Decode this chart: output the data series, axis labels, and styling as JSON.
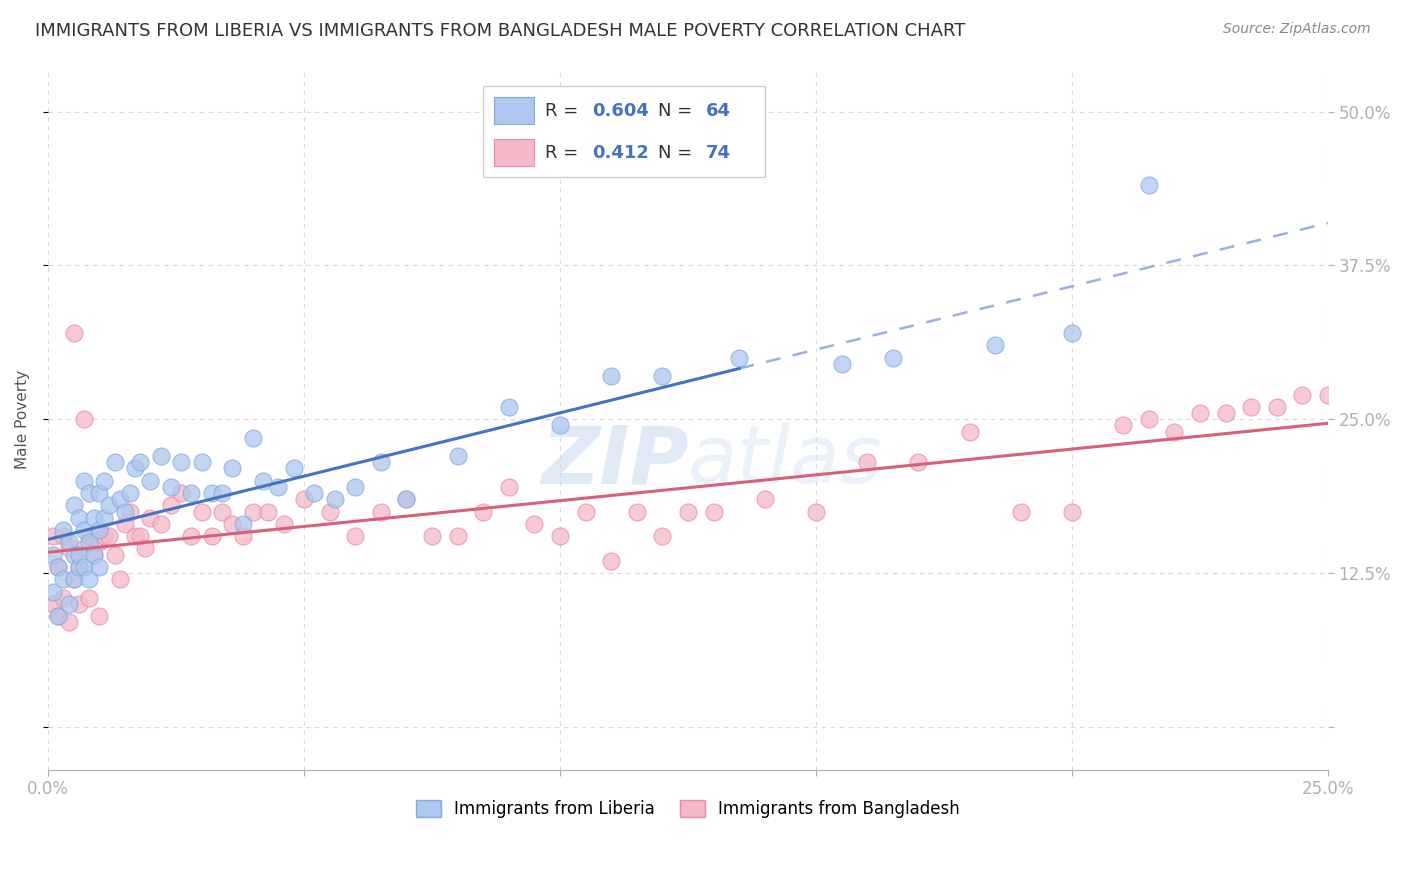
{
  "title": "IMMIGRANTS FROM LIBERIA VS IMMIGRANTS FROM BANGLADESH MALE POVERTY CORRELATION CHART",
  "source": "Source: ZipAtlas.com",
  "ylabel": "Male Poverty",
  "x_min": 0.0,
  "x_max": 0.25,
  "y_min": -0.035,
  "y_max": 0.535,
  "x_tick_positions": [
    0.0,
    0.05,
    0.1,
    0.15,
    0.2,
    0.25
  ],
  "x_tick_labels": [
    "0.0%",
    "",
    "",
    "",
    "",
    "25.0%"
  ],
  "y_tick_positions": [
    0.0,
    0.125,
    0.25,
    0.375,
    0.5
  ],
  "y_tick_labels": [
    "",
    "12.5%",
    "25.0%",
    "37.5%",
    "50.0%"
  ],
  "liberia_color": "#aec6f0",
  "liberia_edge_color": "#80aad8",
  "bangladesh_color": "#f5b8c8",
  "bangladesh_edge_color": "#e888aa",
  "liberia_R": 0.604,
  "liberia_N": 64,
  "bangladesh_R": 0.412,
  "bangladesh_N": 74,
  "liberia_trend_color": "#4472c4",
  "liberia_trend_solid_end": 0.135,
  "bangladesh_trend_color": "#d9607a",
  "watermark": "ZIPatlas",
  "background_color": "#ffffff",
  "grid_color": "#d8d8d8",
  "title_fontsize": 13,
  "liberia_x": [
    0.001,
    0.001,
    0.002,
    0.002,
    0.003,
    0.003,
    0.004,
    0.004,
    0.005,
    0.005,
    0.005,
    0.006,
    0.006,
    0.006,
    0.007,
    0.007,
    0.007,
    0.008,
    0.008,
    0.008,
    0.009,
    0.009,
    0.01,
    0.01,
    0.01,
    0.011,
    0.011,
    0.012,
    0.013,
    0.014,
    0.015,
    0.016,
    0.017,
    0.018,
    0.02,
    0.022,
    0.024,
    0.026,
    0.028,
    0.03,
    0.032,
    0.034,
    0.036,
    0.038,
    0.04,
    0.042,
    0.045,
    0.048,
    0.052,
    0.056,
    0.06,
    0.065,
    0.07,
    0.08,
    0.09,
    0.1,
    0.11,
    0.12,
    0.135,
    0.155,
    0.165,
    0.185,
    0.2,
    0.215
  ],
  "liberia_y": [
    0.14,
    0.11,
    0.13,
    0.09,
    0.16,
    0.12,
    0.15,
    0.1,
    0.18,
    0.14,
    0.12,
    0.17,
    0.13,
    0.14,
    0.2,
    0.16,
    0.13,
    0.19,
    0.15,
    0.12,
    0.17,
    0.14,
    0.19,
    0.16,
    0.13,
    0.2,
    0.17,
    0.18,
    0.215,
    0.185,
    0.175,
    0.19,
    0.21,
    0.215,
    0.2,
    0.22,
    0.195,
    0.215,
    0.19,
    0.215,
    0.19,
    0.19,
    0.21,
    0.165,
    0.235,
    0.2,
    0.195,
    0.21,
    0.19,
    0.185,
    0.195,
    0.215,
    0.185,
    0.22,
    0.26,
    0.245,
    0.285,
    0.285,
    0.3,
    0.295,
    0.3,
    0.31,
    0.32,
    0.44
  ],
  "bangladesh_x": [
    0.001,
    0.001,
    0.002,
    0.002,
    0.003,
    0.003,
    0.004,
    0.004,
    0.005,
    0.005,
    0.006,
    0.006,
    0.007,
    0.007,
    0.008,
    0.008,
    0.009,
    0.01,
    0.01,
    0.011,
    0.012,
    0.013,
    0.014,
    0.015,
    0.016,
    0.017,
    0.018,
    0.019,
    0.02,
    0.022,
    0.024,
    0.026,
    0.028,
    0.03,
    0.032,
    0.034,
    0.036,
    0.038,
    0.04,
    0.043,
    0.046,
    0.05,
    0.055,
    0.06,
    0.065,
    0.07,
    0.075,
    0.08,
    0.085,
    0.09,
    0.095,
    0.1,
    0.105,
    0.11,
    0.115,
    0.12,
    0.125,
    0.13,
    0.14,
    0.15,
    0.16,
    0.17,
    0.18,
    0.19,
    0.2,
    0.21,
    0.215,
    0.22,
    0.225,
    0.23,
    0.235,
    0.24,
    0.245,
    0.25
  ],
  "bangladesh_y": [
    0.155,
    0.1,
    0.13,
    0.09,
    0.155,
    0.105,
    0.145,
    0.085,
    0.32,
    0.12,
    0.1,
    0.13,
    0.145,
    0.25,
    0.155,
    0.105,
    0.14,
    0.15,
    0.09,
    0.155,
    0.155,
    0.14,
    0.12,
    0.165,
    0.175,
    0.155,
    0.155,
    0.145,
    0.17,
    0.165,
    0.18,
    0.19,
    0.155,
    0.175,
    0.155,
    0.175,
    0.165,
    0.155,
    0.175,
    0.175,
    0.165,
    0.185,
    0.175,
    0.155,
    0.175,
    0.185,
    0.155,
    0.155,
    0.175,
    0.195,
    0.165,
    0.155,
    0.175,
    0.135,
    0.175,
    0.155,
    0.175,
    0.175,
    0.185,
    0.175,
    0.215,
    0.215,
    0.24,
    0.175,
    0.175,
    0.245,
    0.25,
    0.24,
    0.255,
    0.255,
    0.26,
    0.26,
    0.27,
    0.27
  ]
}
